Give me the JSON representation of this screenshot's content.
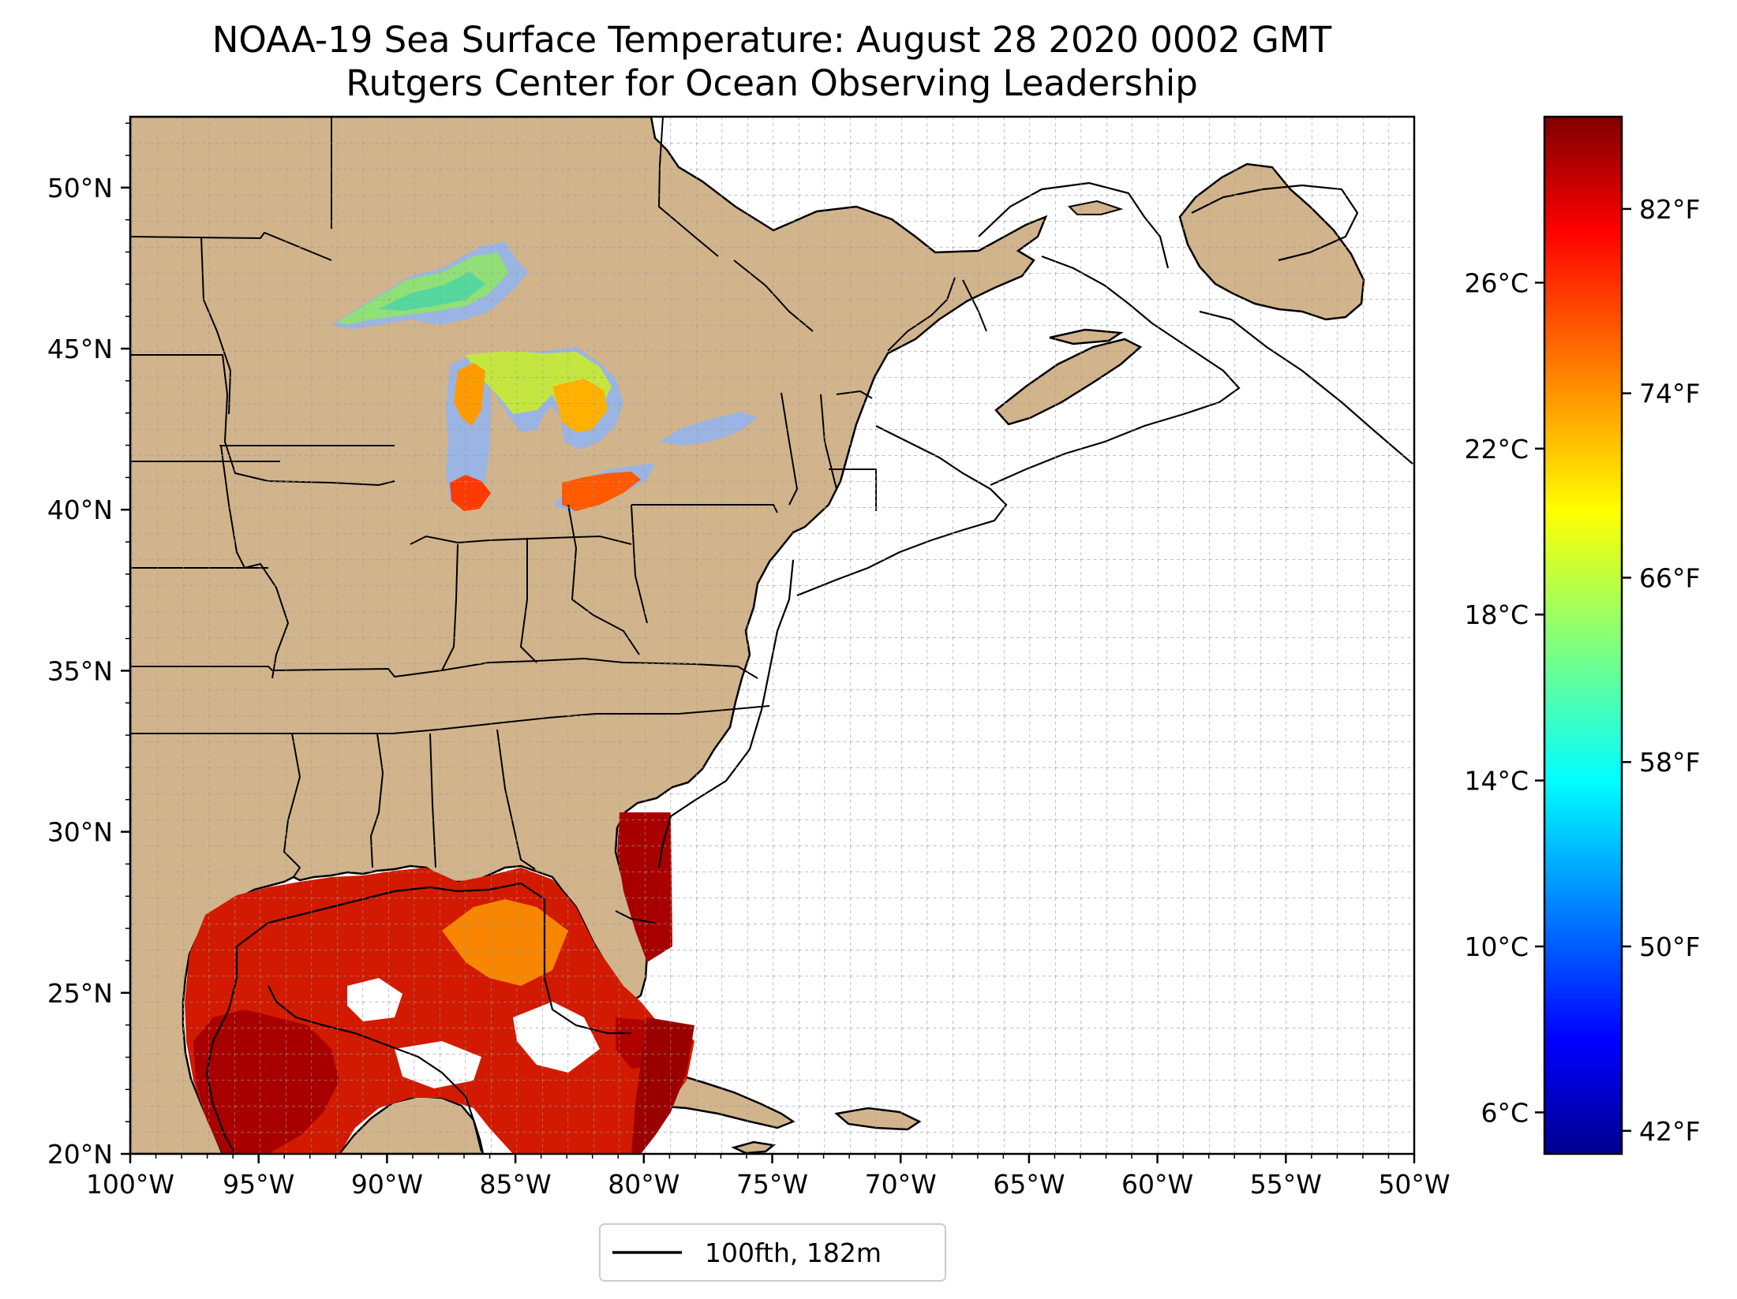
{
  "title": {
    "line1": "NOAA-19 Sea Surface Temperature: August 28 2020 0002 GMT",
    "line2": "Rutgers Center for Ocean Observing Leadership"
  },
  "map": {
    "lon_range": [
      -100,
      -50
    ],
    "lat_range": [
      20,
      52.2
    ],
    "gridlines": true,
    "gridline_style": "dashed",
    "grid_step_degrees": 1,
    "land_color": "#d2b48c",
    "lake_color": "#9ab5e3",
    "ocean_color": "#ffffff",
    "x_ticks": [
      {
        "value": -100,
        "label": "100°W"
      },
      {
        "value": -95,
        "label": "95°W"
      },
      {
        "value": -90,
        "label": "90°W"
      },
      {
        "value": -85,
        "label": "85°W"
      },
      {
        "value": -80,
        "label": "80°W"
      },
      {
        "value": -75,
        "label": "75°W"
      },
      {
        "value": -70,
        "label": "70°W"
      },
      {
        "value": -65,
        "label": "65°W"
      },
      {
        "value": -60,
        "label": "60°W"
      },
      {
        "value": -55,
        "label": "55°W"
      },
      {
        "value": -50,
        "label": "50°W"
      }
    ],
    "y_ticks": [
      {
        "value": 20,
        "label": "20°N"
      },
      {
        "value": 25,
        "label": "25°N"
      },
      {
        "value": 30,
        "label": "30°N"
      },
      {
        "value": 35,
        "label": "35°N"
      },
      {
        "value": 40,
        "label": "40°N"
      },
      {
        "value": 45,
        "label": "45°N"
      },
      {
        "value": 50,
        "label": "50°N"
      }
    ]
  },
  "legend": {
    "entry_label": "100fth, 182m",
    "line_color": "#000000",
    "placement": "bottom-center, below map"
  },
  "colorbar": {
    "colormap": "jet",
    "range_celsius": [
      5,
      30
    ],
    "celsius_ticks": [
      {
        "value": 6,
        "label": "6°C"
      },
      {
        "value": 10,
        "label": "10°C"
      },
      {
        "value": 14,
        "label": "14°C"
      },
      {
        "value": 18,
        "label": "18°C"
      },
      {
        "value": 22,
        "label": "22°C"
      },
      {
        "value": 26,
        "label": "26°C"
      }
    ],
    "fahrenheit_ticks": [
      {
        "value": 42,
        "label": "42°F"
      },
      {
        "value": 50,
        "label": "50°F"
      },
      {
        "value": 58,
        "label": "58°F"
      },
      {
        "value": 66,
        "label": "66°F"
      },
      {
        "value": 74,
        "label": "74°F"
      },
      {
        "value": 82,
        "label": "82°F"
      }
    ]
  }
}
